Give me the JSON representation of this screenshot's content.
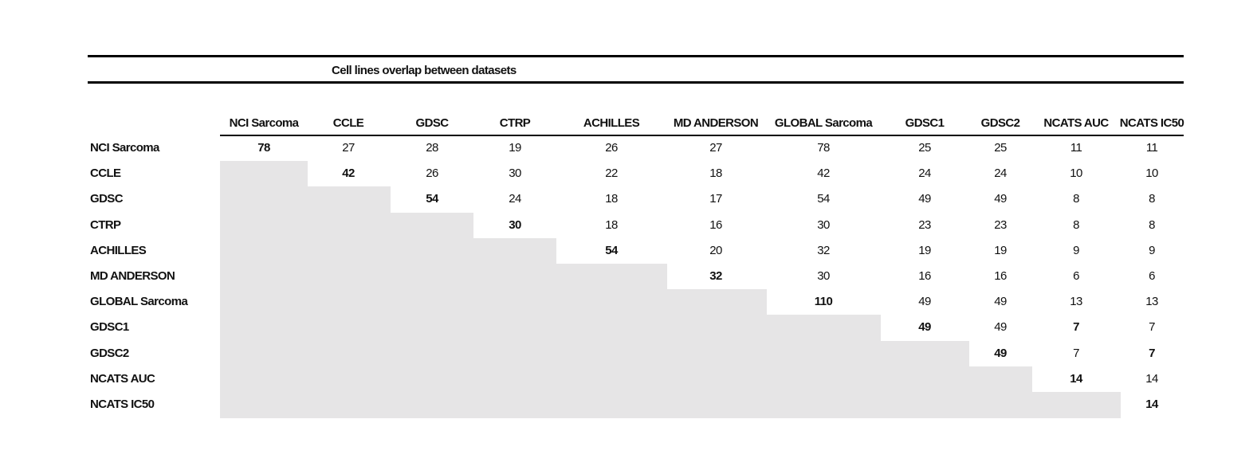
{
  "table": {
    "title": "Cell lines overlap between datasets",
    "columns": [
      "NCI Sarcoma",
      "CCLE",
      "GDSC",
      "CTRP",
      "ACHILLES",
      "MD ANDERSON",
      "GLOBAL Sarcoma",
      "GDSC1",
      "GDSC2",
      "NCATS AUC",
      "NCATS IC50"
    ],
    "rows": [
      {
        "label": "NCI Sarcoma",
        "values": [
          78,
          27,
          28,
          19,
          26,
          27,
          78,
          25,
          25,
          11,
          11
        ]
      },
      {
        "label": "CCLE",
        "values": [
          null,
          42,
          26,
          30,
          22,
          18,
          42,
          24,
          24,
          10,
          10
        ]
      },
      {
        "label": "GDSC",
        "values": [
          null,
          null,
          54,
          24,
          18,
          17,
          54,
          49,
          49,
          8,
          8
        ]
      },
      {
        "label": "CTRP",
        "values": [
          null,
          null,
          null,
          30,
          18,
          16,
          30,
          23,
          23,
          8,
          8
        ]
      },
      {
        "label": "ACHILLES",
        "values": [
          null,
          null,
          null,
          null,
          54,
          20,
          32,
          19,
          19,
          9,
          9
        ]
      },
      {
        "label": "MD ANDERSON",
        "values": [
          null,
          null,
          null,
          null,
          null,
          32,
          30,
          16,
          16,
          6,
          6
        ]
      },
      {
        "label": "GLOBAL Sarcoma",
        "values": [
          null,
          null,
          null,
          null,
          null,
          null,
          110,
          49,
          49,
          13,
          13
        ]
      },
      {
        "label": "GDSC1",
        "values": [
          null,
          null,
          null,
          null,
          null,
          null,
          null,
          49,
          49,
          7,
          7
        ]
      },
      {
        "label": "GDSC2",
        "values": [
          null,
          null,
          null,
          null,
          null,
          null,
          null,
          null,
          49,
          7,
          7
        ]
      },
      {
        "label": "NCATS AUC",
        "values": [
          null,
          null,
          null,
          null,
          null,
          null,
          null,
          null,
          null,
          14,
          14
        ]
      },
      {
        "label": "NCATS IC50",
        "values": [
          null,
          null,
          null,
          null,
          null,
          null,
          null,
          null,
          null,
          null,
          14
        ]
      }
    ],
    "bold_cells": [
      [
        0,
        0
      ],
      [
        1,
        1
      ],
      [
        2,
        2
      ],
      [
        3,
        3
      ],
      [
        4,
        4
      ],
      [
        5,
        5
      ],
      [
        6,
        6
      ],
      [
        7,
        7
      ],
      [
        8,
        8
      ],
      [
        9,
        9
      ],
      [
        10,
        10
      ],
      [
        7,
        9
      ],
      [
        8,
        10
      ]
    ],
    "shade_color": "#e6e5e6"
  }
}
